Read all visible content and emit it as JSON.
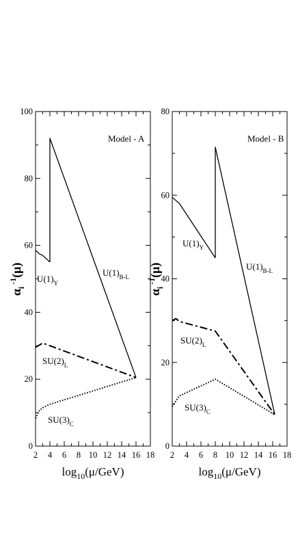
{
  "chart_data": [
    {
      "type": "line",
      "title": "Model - A",
      "xlabel": "log10(μ/GeV)",
      "ylabel": "α_i^-1(μ)",
      "xlim": [
        2,
        18
      ],
      "ylim": [
        0,
        100
      ],
      "xticks": [
        2,
        4,
        6,
        8,
        10,
        12,
        14,
        16,
        18
      ],
      "yticks": [
        0,
        20,
        40,
        60,
        80,
        100
      ],
      "grid": false,
      "legend": "inline labels",
      "series": [
        {
          "name": "U(1)Y",
          "label_base": "U(1)",
          "label_sub": "Y",
          "style": "solid",
          "x": [
            2,
            2.5,
            3,
            3.5,
            4
          ],
          "y": [
            58.5,
            57.5,
            57,
            56,
            55
          ]
        },
        {
          "name": "U(1)B-L",
          "label_base": "U(1)",
          "label_sub": "B-L",
          "style": "solid",
          "x": [
            4,
            4,
            16
          ],
          "y": [
            55,
            92,
            20.5
          ]
        },
        {
          "name": "SU(2)L",
          "label_base": "SU(2)",
          "label_sub": "L",
          "style": "dashdot",
          "x": [
            2,
            3,
            4,
            16
          ],
          "y": [
            29.5,
            30.8,
            30,
            20.5
          ]
        },
        {
          "name": "SU(3)C",
          "label_base": "SU(3)",
          "label_sub": "C",
          "style": "dotted",
          "x": [
            2,
            2.5,
            3,
            4,
            16
          ],
          "y": [
            8.3,
            10.5,
            11.5,
            12.5,
            20.5
          ]
        }
      ]
    },
    {
      "type": "line",
      "title": "Model - B",
      "xlabel": "log10(μ/GeV)",
      "ylabel": "α_i^-1(μ)",
      "xlim": [
        2,
        18
      ],
      "ylim": [
        0,
        80
      ],
      "xticks": [
        2,
        4,
        6,
        8,
        10,
        12,
        14,
        16,
        18
      ],
      "yticks": [
        0,
        20,
        40,
        60,
        80
      ],
      "grid": false,
      "legend": "inline labels",
      "series": [
        {
          "name": "U(1)Y",
          "label_base": "U(1)",
          "label_sub": "Y",
          "style": "solid",
          "x": [
            2,
            3,
            8
          ],
          "y": [
            59.5,
            58,
            45
          ]
        },
        {
          "name": "U(1)B-L",
          "label_base": "U(1)",
          "label_sub": "B-L",
          "style": "solid",
          "x": [
            8,
            8,
            16.3
          ],
          "y": [
            45,
            71.5,
            7.5
          ]
        },
        {
          "name": "SU(2)L",
          "label_base": "SU(2)",
          "label_sub": "L",
          "style": "dashdot",
          "x": [
            2,
            2.5,
            3,
            8,
            16.3
          ],
          "y": [
            30,
            30.5,
            29.8,
            27.5,
            7.5
          ]
        },
        {
          "name": "SU(3)C",
          "label_base": "SU(3)",
          "label_sub": "C",
          "style": "dotted",
          "x": [
            2,
            3,
            8,
            16.3
          ],
          "y": [
            9.5,
            12,
            16,
            7.5
          ]
        }
      ]
    }
  ]
}
